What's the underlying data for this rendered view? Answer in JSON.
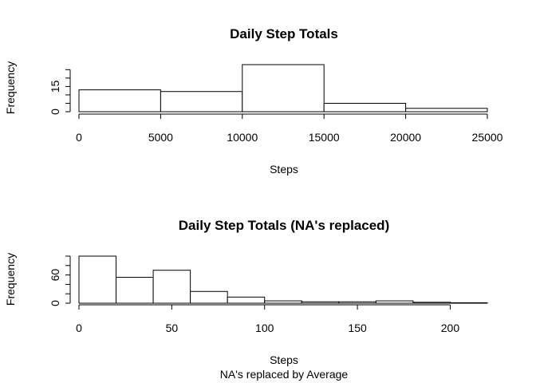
{
  "chart_data": [
    {
      "type": "bar",
      "title": "Daily Step Totals",
      "xlabel": "Steps",
      "ylabel": "Frequency",
      "bins": [
        [
          0,
          5000
        ],
        [
          5000,
          10000
        ],
        [
          10000,
          15000
        ],
        [
          15000,
          20000
        ],
        [
          20000,
          25000
        ]
      ],
      "values": [
        13,
        12,
        28,
        5,
        2
      ],
      "xlim": [
        0,
        25000
      ],
      "ylim": [
        0,
        28
      ],
      "xticks": [
        0,
        5000,
        10000,
        15000,
        20000,
        25000
      ],
      "yticks": [
        0,
        5,
        10,
        15,
        20,
        25
      ],
      "ytick_labels": [
        "0",
        "",
        "",
        "15",
        "",
        ""
      ]
    },
    {
      "type": "bar",
      "title": "Daily Step Totals (NA's replaced)",
      "xlabel": "Steps",
      "ylabel": "Frequency",
      "subtitle": "NA's replaced by Average",
      "bins": [
        [
          0,
          20
        ],
        [
          20,
          40
        ],
        [
          40,
          60
        ],
        [
          60,
          80
        ],
        [
          80,
          100
        ],
        [
          100,
          120
        ],
        [
          120,
          140
        ],
        [
          140,
          160
        ],
        [
          160,
          180
        ],
        [
          180,
          200
        ],
        [
          200,
          220
        ]
      ],
      "values": [
        100,
        55,
        70,
        25,
        13,
        5,
        3,
        3,
        5,
        2,
        1
      ],
      "xlim": [
        0,
        220
      ],
      "ylim": [
        0,
        100
      ],
      "xticks": [
        0,
        50,
        100,
        150,
        200
      ],
      "yticks": [
        0,
        20,
        40,
        60,
        80,
        100
      ],
      "ytick_labels": [
        "0",
        "",
        "",
        "60",
        "",
        ""
      ]
    }
  ]
}
